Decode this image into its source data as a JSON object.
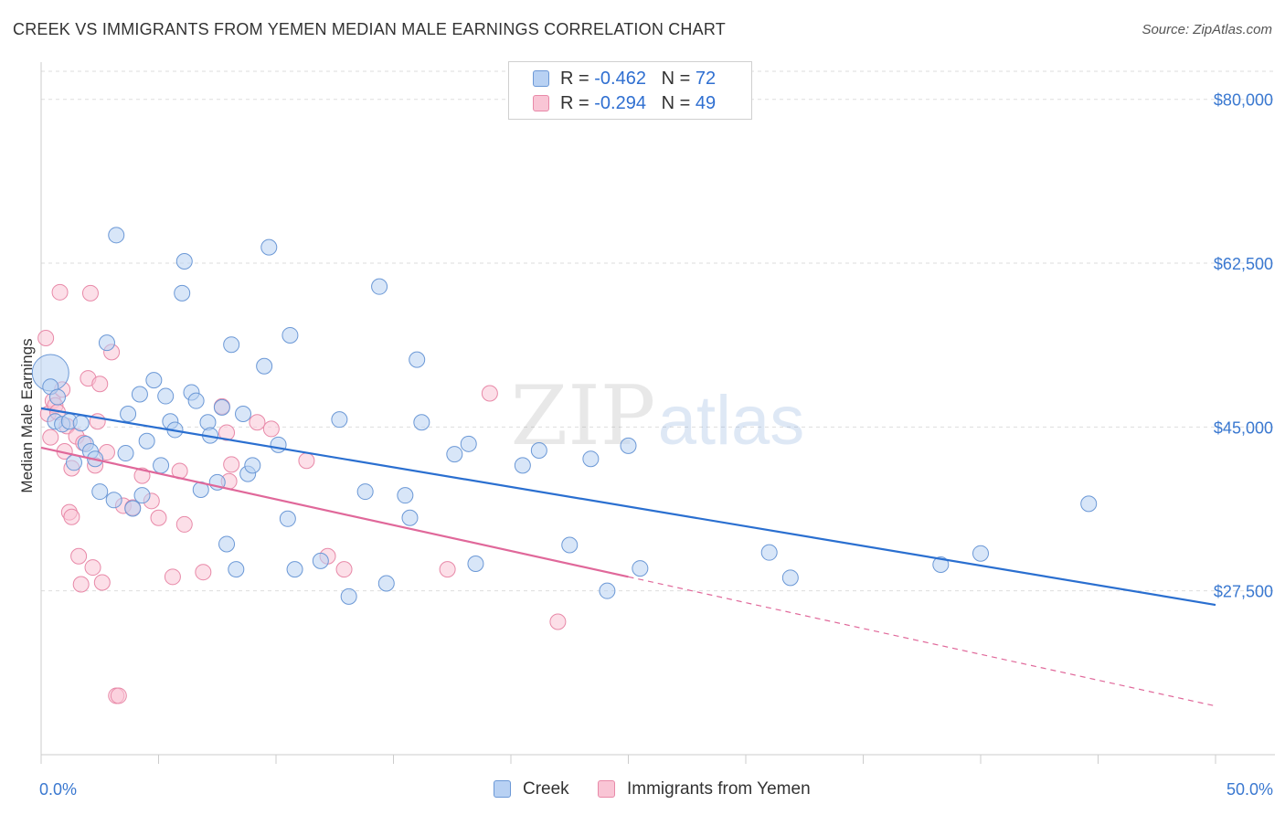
{
  "header": {
    "title": "CREEK VS IMMIGRANTS FROM YEMEN MEDIAN MALE EARNINGS CORRELATION CHART",
    "source": "Source: ZipAtlas.com"
  },
  "watermark": {
    "part1": "ZIP",
    "part2": "atlas"
  },
  "legend": {
    "rows": [
      {
        "r_label": "R = ",
        "r_value": "-0.462",
        "n_label": "N = ",
        "n_value": "72"
      },
      {
        "r_label": "R = ",
        "r_value": "-0.294",
        "n_label": "N = ",
        "n_value": "49"
      }
    ]
  },
  "bottom_legend": {
    "series1": "Creek",
    "series2": "Immigrants from Yemen"
  },
  "colors": {
    "creek_fill": "#b8d1f3",
    "creek_stroke": "#6b98d6",
    "creek_line": "#2a6fd0",
    "yemen_fill": "#f9c5d5",
    "yemen_stroke": "#e889a8",
    "yemen_line": "#e0689a",
    "tick_label": "#3a78d0",
    "grid": "#dddddd",
    "axis": "#cccccc"
  },
  "chart_data": {
    "type": "scatter",
    "title": "CREEK VS IMMIGRANTS FROM YEMEN MEDIAN MALE EARNINGS CORRELATION CHART",
    "xlabel": "",
    "ylabel": "Median Male Earnings",
    "xlim": [
      0,
      50
    ],
    "ylim": [
      10000,
      83000
    ],
    "x_tick_labels": [
      "0.0%",
      "50.0%"
    ],
    "y_ticks": [
      27500,
      45000,
      62500,
      80000
    ],
    "y_tick_labels": [
      "$27,500",
      "$45,000",
      "$62,500",
      "$80,000"
    ],
    "grid": true,
    "legend_position": "top-center",
    "series": [
      {
        "name": "Creek",
        "R": -0.462,
        "N": 72,
        "trend": {
          "x": [
            0,
            50
          ],
          "y": [
            47000,
            26000
          ]
        },
        "points": [
          [
            0.4,
            50800
          ],
          [
            0.4,
            49300
          ],
          [
            0.7,
            48200
          ],
          [
            0.6,
            45600
          ],
          [
            0.9,
            45300
          ],
          [
            1.2,
            45600
          ],
          [
            1.7,
            45400
          ],
          [
            1.9,
            43200
          ],
          [
            2.1,
            42400
          ],
          [
            2.3,
            41600
          ],
          [
            2.5,
            38100
          ],
          [
            2.8,
            54000
          ],
          [
            3.1,
            37200
          ],
          [
            3.2,
            65500
          ],
          [
            3.6,
            42200
          ],
          [
            3.7,
            46400
          ],
          [
            3.9,
            36300
          ],
          [
            4.2,
            48500
          ],
          [
            4.3,
            37700
          ],
          [
            4.5,
            43500
          ],
          [
            4.8,
            50000
          ],
          [
            5.1,
            40900
          ],
          [
            5.3,
            48300
          ],
          [
            5.5,
            45600
          ],
          [
            5.7,
            44700
          ],
          [
            6.0,
            59300
          ],
          [
            6.1,
            62700
          ],
          [
            6.4,
            48700
          ],
          [
            6.6,
            47800
          ],
          [
            6.8,
            38300
          ],
          [
            7.1,
            45500
          ],
          [
            7.2,
            44100
          ],
          [
            7.5,
            39100
          ],
          [
            7.7,
            47100
          ],
          [
            7.9,
            32500
          ],
          [
            8.1,
            53800
          ],
          [
            8.3,
            29800
          ],
          [
            8.6,
            46400
          ],
          [
            8.8,
            40000
          ],
          [
            9.0,
            40900
          ],
          [
            9.5,
            51500
          ],
          [
            9.7,
            64200
          ],
          [
            10.1,
            43100
          ],
          [
            10.5,
            35200
          ],
          [
            10.6,
            54800
          ],
          [
            10.8,
            29800
          ],
          [
            11.9,
            30700
          ],
          [
            12.7,
            45800
          ],
          [
            13.1,
            26900
          ],
          [
            13.8,
            38100
          ],
          [
            14.4,
            60000
          ],
          [
            14.7,
            28300
          ],
          [
            15.5,
            37700
          ],
          [
            15.7,
            35300
          ],
          [
            16.0,
            52200
          ],
          [
            16.2,
            45500
          ],
          [
            17.6,
            42100
          ],
          [
            18.2,
            43200
          ],
          [
            18.5,
            30400
          ],
          [
            20.5,
            40900
          ],
          [
            21.2,
            42500
          ],
          [
            22.5,
            32400
          ],
          [
            23.4,
            41600
          ],
          [
            24.1,
            27500
          ],
          [
            25.0,
            43000
          ],
          [
            25.5,
            29900
          ],
          [
            31.0,
            31600
          ],
          [
            31.9,
            28900
          ],
          [
            38.3,
            30300
          ],
          [
            40.0,
            31500
          ],
          [
            44.6,
            36800
          ],
          [
            1.4,
            41200
          ]
        ]
      },
      {
        "name": "Immigrants from Yemen",
        "R": -0.294,
        "N": 49,
        "trend": {
          "x": [
            0,
            25
          ],
          "y": [
            42800,
            29000
          ]
        },
        "trend_dashed": {
          "x": [
            25,
            50
          ],
          "y": [
            29000,
            15200
          ]
        },
        "points": [
          [
            0.2,
            54500
          ],
          [
            0.3,
            46400
          ],
          [
            0.4,
            43900
          ],
          [
            0.5,
            47800
          ],
          [
            0.6,
            47300
          ],
          [
            0.7,
            46600
          ],
          [
            0.9,
            49000
          ],
          [
            1.0,
            42400
          ],
          [
            1.1,
            45100
          ],
          [
            1.2,
            35900
          ],
          [
            1.3,
            35400
          ],
          [
            1.3,
            40600
          ],
          [
            1.5,
            44000
          ],
          [
            1.6,
            31200
          ],
          [
            1.7,
            28200
          ],
          [
            1.8,
            43300
          ],
          [
            2.0,
            50200
          ],
          [
            2.2,
            30000
          ],
          [
            2.3,
            40900
          ],
          [
            2.4,
            45600
          ],
          [
            2.5,
            49600
          ],
          [
            2.6,
            28400
          ],
          [
            2.8,
            42300
          ],
          [
            3.0,
            53000
          ],
          [
            3.2,
            16300
          ],
          [
            3.3,
            16300
          ],
          [
            3.5,
            36600
          ],
          [
            3.9,
            36400
          ],
          [
            4.3,
            39800
          ],
          [
            4.7,
            37100
          ],
          [
            5.0,
            35300
          ],
          [
            5.6,
            29000
          ],
          [
            5.9,
            40300
          ],
          [
            6.1,
            34600
          ],
          [
            6.9,
            29500
          ],
          [
            7.7,
            47200
          ],
          [
            7.9,
            44400
          ],
          [
            8.1,
            41000
          ],
          [
            9.2,
            45500
          ],
          [
            9.8,
            44800
          ],
          [
            11.3,
            41400
          ],
          [
            12.2,
            31200
          ],
          [
            12.9,
            29800
          ],
          [
            17.3,
            29800
          ],
          [
            19.1,
            48600
          ],
          [
            22.0,
            24200
          ],
          [
            2.1,
            59300
          ],
          [
            0.8,
            59400
          ],
          [
            8.0,
            39200
          ]
        ]
      }
    ]
  }
}
